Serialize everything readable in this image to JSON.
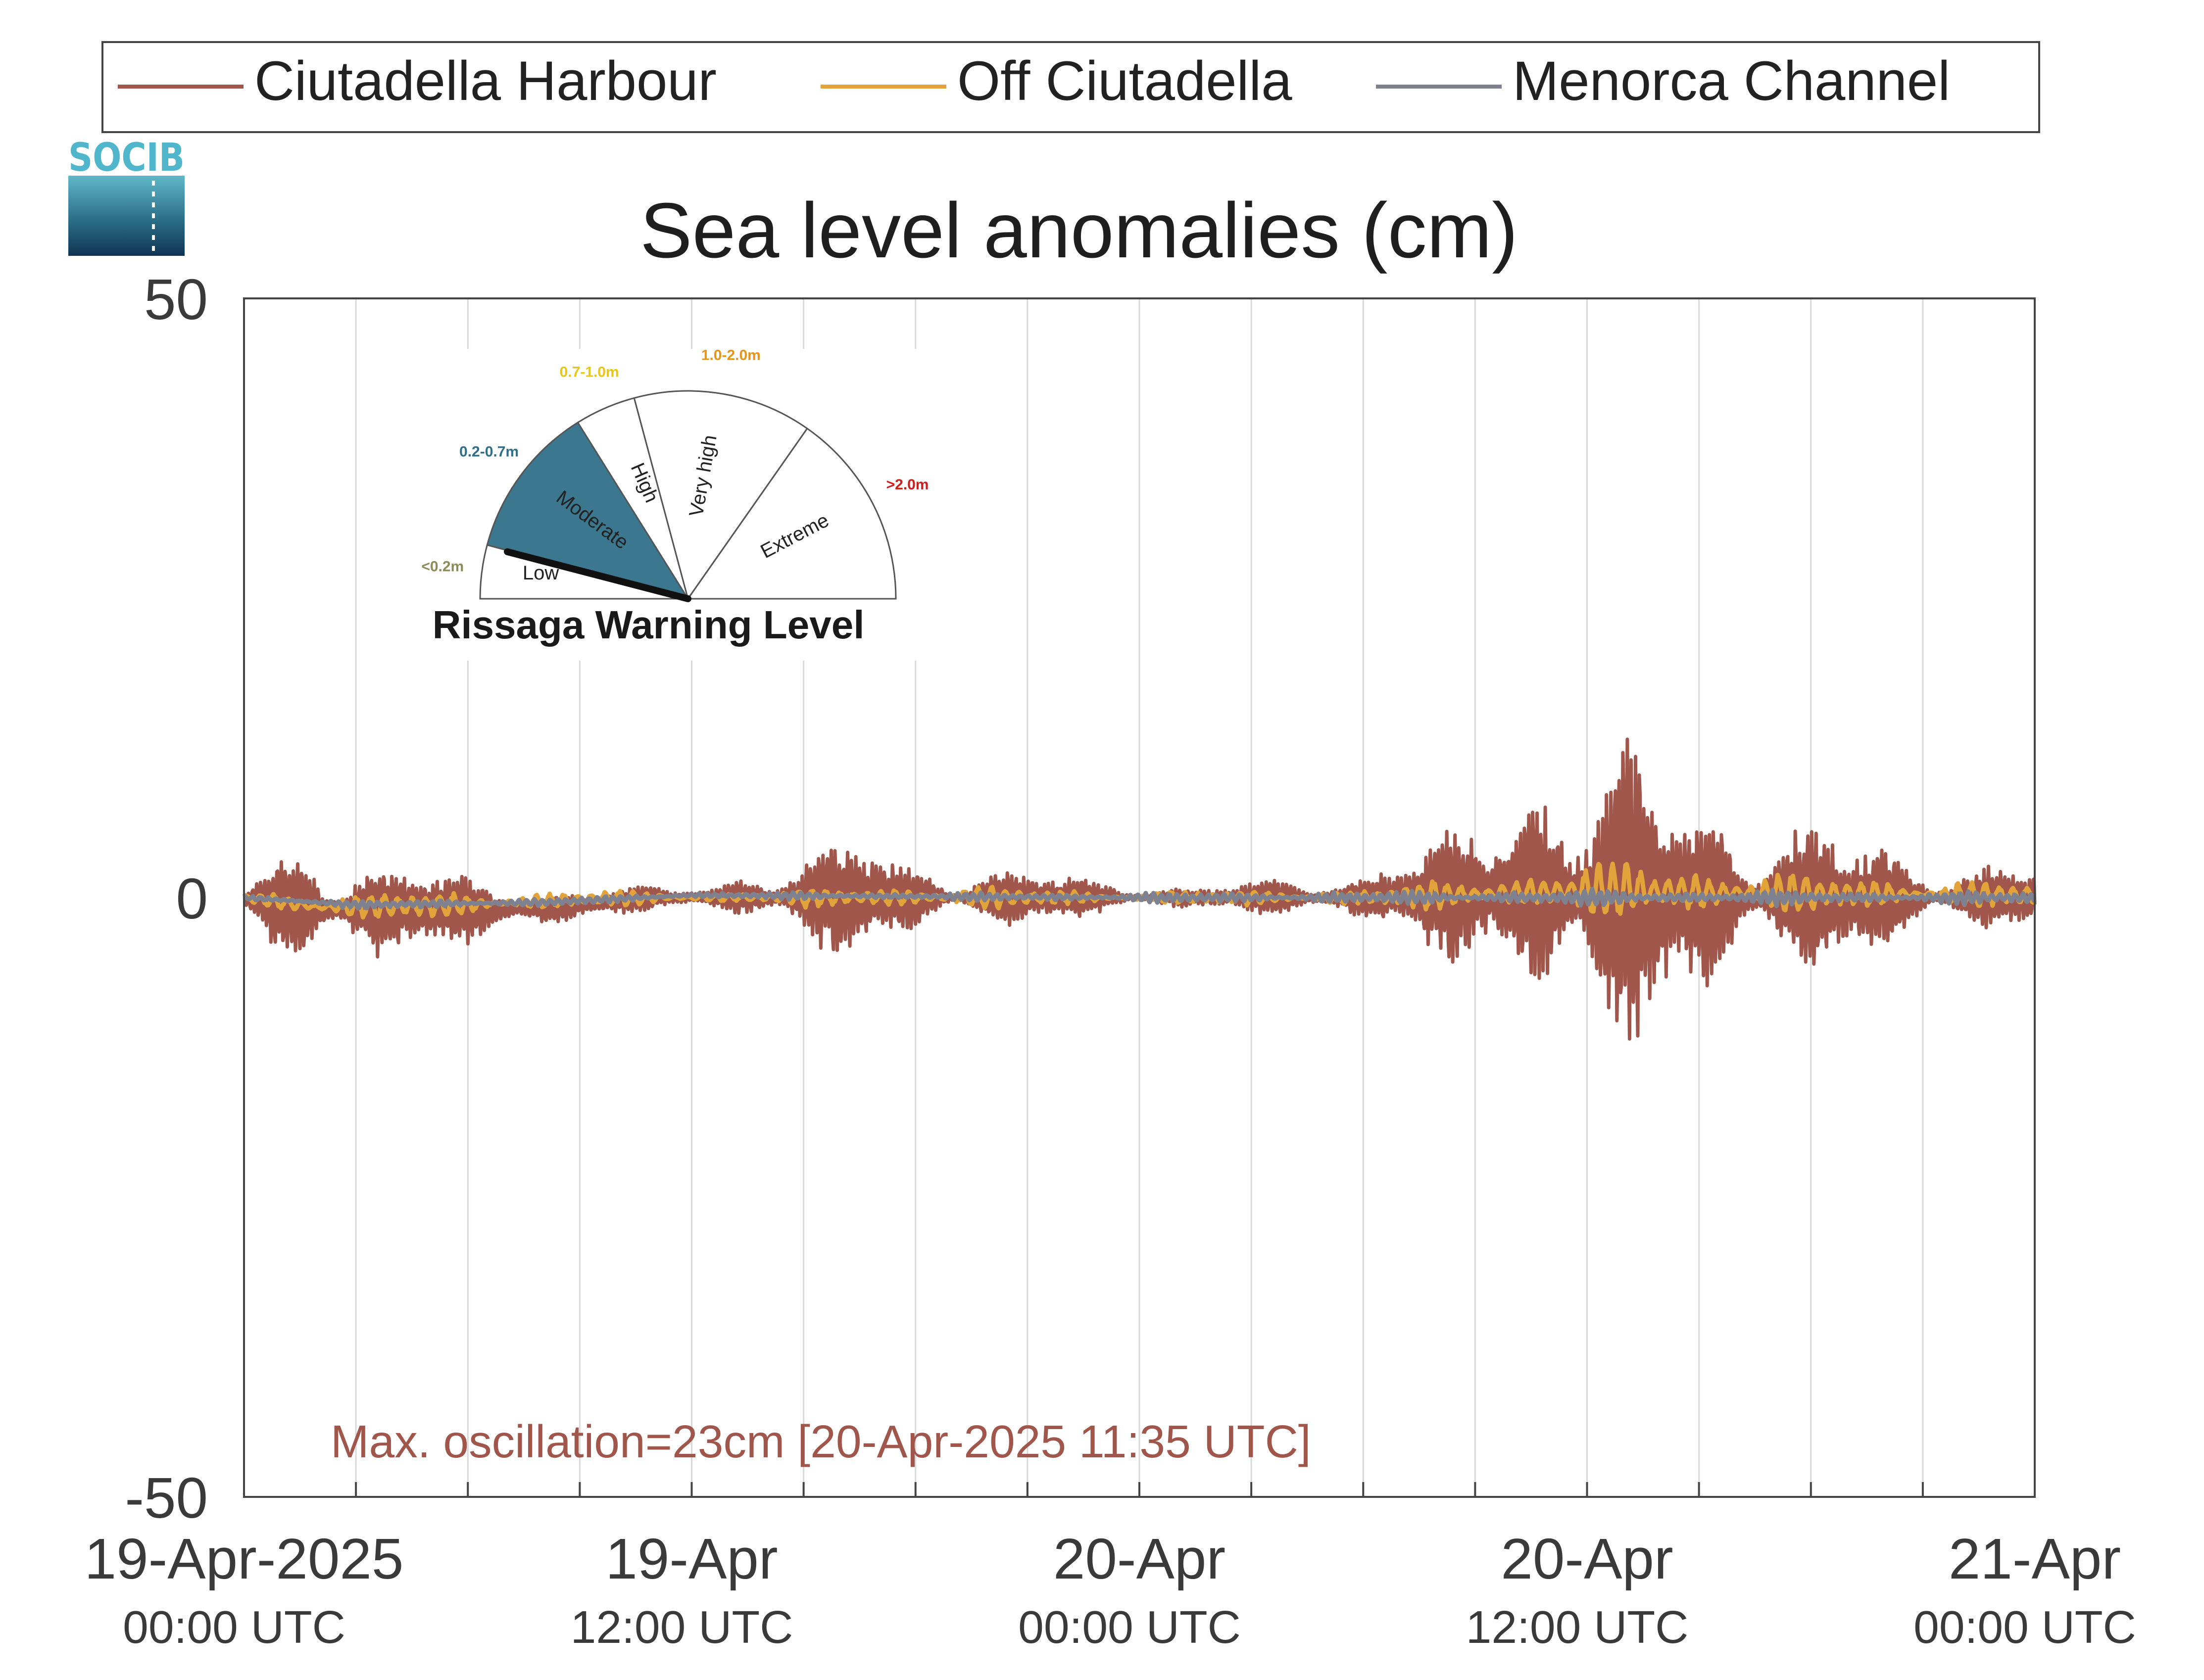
{
  "chart_data": {
    "type": "line",
    "title": "Sea level anomalies (cm)",
    "xlabel": "",
    "ylabel": "",
    "ylim": [
      -50,
      50
    ],
    "yticks": [
      {
        "value": 50,
        "label": "50"
      },
      {
        "value": 0,
        "label": "0"
      },
      {
        "value": -50,
        "label": "-50"
      }
    ],
    "xlim_hours": [
      0,
      48
    ],
    "xticks": [
      {
        "hour": 0,
        "line1": "19-Apr-2025",
        "line2": "00:00 UTC"
      },
      {
        "hour": 12,
        "line1": "19-Apr",
        "line2": "12:00 UTC"
      },
      {
        "hour": 24,
        "line1": "20-Apr",
        "line2": "00:00 UTC"
      },
      {
        "hour": 36,
        "line1": "20-Apr",
        "line2": "12:00 UTC"
      },
      {
        "hour": 48,
        "line1": "21-Apr",
        "line2": "00:00 UTC"
      }
    ],
    "gridline_hours": [
      3,
      6,
      9,
      12,
      15,
      18,
      21,
      24,
      27,
      30,
      33,
      36,
      39,
      42,
      45
    ],
    "grid": true,
    "legend": {
      "placement": "top",
      "entries": [
        {
          "name": "Ciutadella Harbour",
          "color": "#a0564a"
        },
        {
          "name": "Off Ciutadella",
          "color": "#e2a33a"
        },
        {
          "name": "Menorca Channel",
          "color": "#7e8290"
        }
      ]
    },
    "series": [
      {
        "name": "Ciutadella Harbour",
        "color": "#a0564a",
        "oscillation_amplitude_cm": [
          [
            0,
            0.5
          ],
          [
            0.6,
            2.5
          ],
          [
            1.5,
            4.5
          ],
          [
            2.5,
            4.5
          ],
          [
            3.5,
            4
          ],
          [
            4.5,
            3
          ],
          [
            6,
            2
          ],
          [
            8,
            1.5
          ],
          [
            10,
            1
          ],
          [
            11.5,
            0.5
          ],
          [
            12.5,
            1
          ],
          [
            13.5,
            2
          ],
          [
            15,
            2.5
          ],
          [
            16.5,
            4.5
          ],
          [
            18,
            2.5
          ],
          [
            20,
            2
          ],
          [
            22,
            1.5
          ],
          [
            24,
            1
          ],
          [
            25.5,
            0.7
          ],
          [
            26.5,
            0.8
          ],
          [
            28,
            1.2
          ],
          [
            29.5,
            1.5
          ],
          [
            30.5,
            3
          ],
          [
            32,
            3.5
          ],
          [
            33,
            4.5
          ],
          [
            34,
            8
          ],
          [
            35,
            10
          ],
          [
            36,
            10
          ],
          [
            37,
            9.5
          ],
          [
            38,
            8.5
          ],
          [
            39,
            7.5
          ],
          [
            40,
            6.5
          ],
          [
            41,
            6
          ],
          [
            42,
            5
          ],
          [
            43,
            4
          ],
          [
            44.5,
            3
          ],
          [
            46,
            2.5
          ],
          [
            48,
            2.5
          ]
        ],
        "mean_offset_cm": [
          [
            0,
            0
          ],
          [
            1.5,
            -1
          ],
          [
            4,
            -1
          ],
          [
            8,
            -1
          ],
          [
            11,
            0
          ],
          [
            14,
            0
          ],
          [
            18,
            0
          ],
          [
            22,
            0
          ],
          [
            26,
            0
          ],
          [
            30,
            0
          ],
          [
            34,
            0.5
          ],
          [
            38,
            0
          ],
          [
            42,
            0
          ],
          [
            48,
            0
          ]
        ]
      },
      {
        "name": "Off Ciutadella",
        "color": "#e2a33a",
        "oscillation_amplitude_cm": [
          [
            0,
            0.3
          ],
          [
            2,
            1
          ],
          [
            6,
            0.8
          ],
          [
            12,
            0.3
          ],
          [
            18,
            0.8
          ],
          [
            24,
            0.4
          ],
          [
            30,
            0.6
          ],
          [
            34,
            1.2
          ],
          [
            36,
            1.8
          ],
          [
            38,
            1.8
          ],
          [
            42,
            1.2
          ],
          [
            48,
            0.8
          ]
        ],
        "mean_offset_cm": [
          [
            0,
            0
          ],
          [
            2,
            -0.8
          ],
          [
            6,
            -0.6
          ],
          [
            10,
            0
          ],
          [
            18,
            0
          ],
          [
            24,
            0
          ],
          [
            30,
            0
          ],
          [
            36,
            0.6
          ],
          [
            40,
            0.4
          ],
          [
            48,
            0.2
          ]
        ]
      },
      {
        "name": "Menorca Channel",
        "color": "#7e8290",
        "oscillation_amplitude_cm": [
          [
            0,
            0.2
          ],
          [
            6,
            0.3
          ],
          [
            12,
            0.2
          ],
          [
            24,
            0.3
          ],
          [
            36,
            0.5
          ],
          [
            48,
            0.4
          ]
        ],
        "mean_offset_cm": [
          [
            0,
            0
          ],
          [
            3,
            -0.6
          ],
          [
            8,
            -0.4
          ],
          [
            12,
            0.2
          ],
          [
            24,
            0
          ],
          [
            36,
            0
          ],
          [
            48,
            0
          ]
        ]
      }
    ],
    "annotations": [
      {
        "text": "Max. oscillation=23cm [20-Apr-2025 11:35 UTC]",
        "color": "#a0564a"
      }
    ]
  },
  "logo": {
    "text": "SOCIB"
  },
  "inset_gauge": {
    "title": "Rissaga Warning Level",
    "active_level": "Moderate",
    "levels": [
      {
        "label": "Low",
        "range": "<0.2m",
        "range_color": "#8c8c5a",
        "fill": "#ffffff"
      },
      {
        "label": "Moderate",
        "range": "0.2-0.7m",
        "range_color": "#2f6f8b",
        "fill": "#3b7890"
      },
      {
        "label": "High",
        "range": "0.7-1.0m",
        "range_color": "#e6c619",
        "fill": "#ffffff"
      },
      {
        "label": "Very high",
        "range": "1.0-2.0m",
        "range_color": "#e8931a",
        "fill": "#ffffff"
      },
      {
        "label": "Extreme",
        "range": ">2.0m",
        "range_color": "#cc1f1f",
        "fill": "#ffffff"
      }
    ]
  }
}
